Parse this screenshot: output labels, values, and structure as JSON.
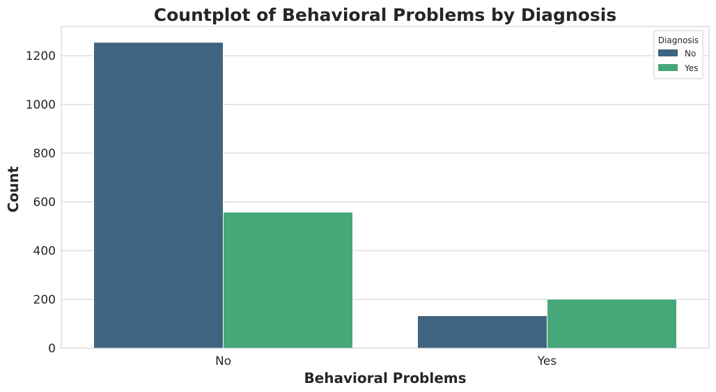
{
  "chart_data": {
    "type": "bar",
    "title": "Countplot of Behavioral Problems by Diagnosis",
    "xlabel": "Behavioral Problems",
    "ylabel": "Count",
    "categories": [
      "No",
      "Yes"
    ],
    "series": [
      {
        "name": "No",
        "color": "#3e6481",
        "values": [
          1255,
          133
        ]
      },
      {
        "name": "Yes",
        "color": "#46a778",
        "values": [
          558,
          201
        ]
      }
    ],
    "ylim": [
      0,
      1320
    ],
    "yticks": [
      0,
      200,
      400,
      600,
      800,
      1000,
      1200
    ],
    "grid": "horizontal",
    "legend": {
      "title": "Diagnosis",
      "placement": "top-right"
    }
  }
}
